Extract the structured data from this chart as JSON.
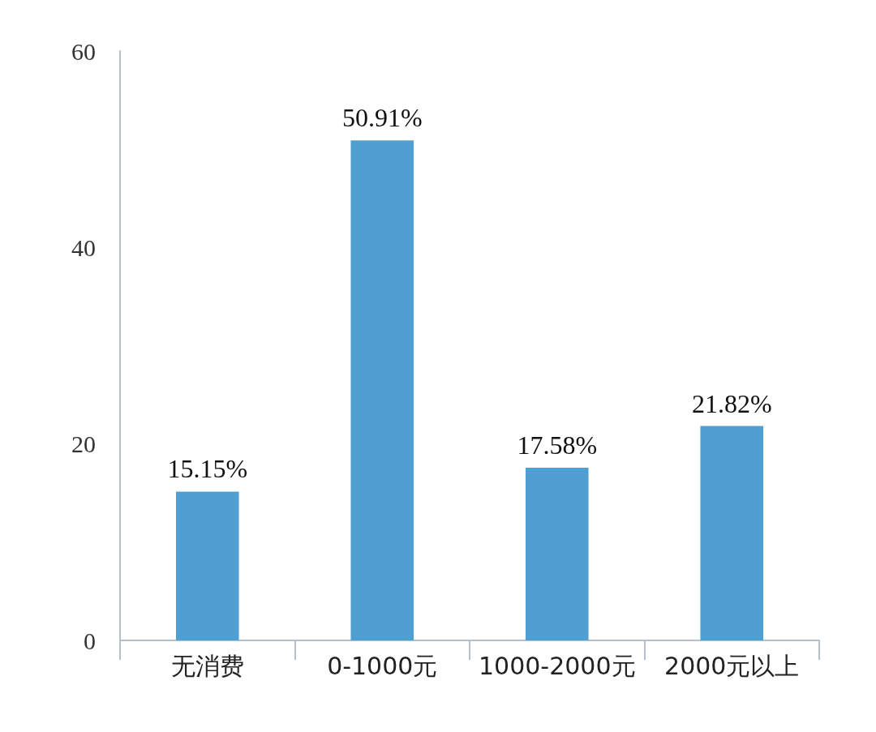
{
  "chart_data": {
    "type": "bar",
    "categories": [
      "无消费",
      "0-1000元",
      "1000-2000元",
      "2000元以上"
    ],
    "values": [
      15.15,
      50.91,
      17.58,
      21.82
    ],
    "value_labels": [
      "15.15%",
      "50.91%",
      "17.58%",
      "21.82%"
    ],
    "color": "#509fd2",
    "ylim": [
      0,
      60
    ],
    "yticks": [
      0,
      20,
      40,
      60
    ],
    "grid": false
  }
}
